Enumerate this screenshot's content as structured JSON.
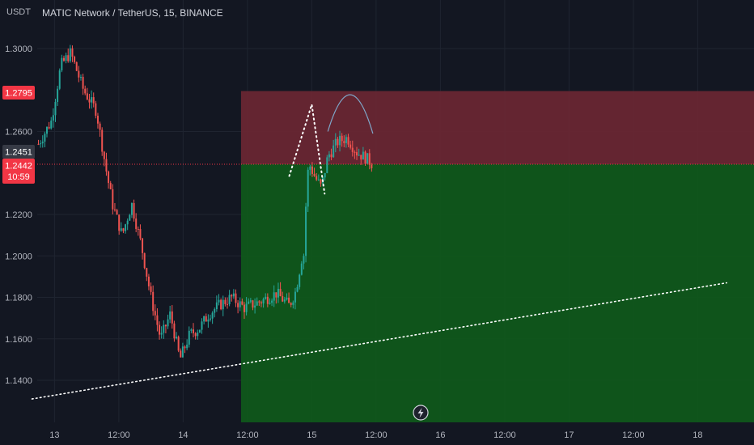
{
  "header": {
    "unit": "USDT",
    "title": "MATIC Network / TetherUS, 15, BINANCE"
  },
  "price_tags": {
    "stop": "1.2795",
    "last": "1.2451",
    "current": "1.2442",
    "countdown": "10:59"
  },
  "colors": {
    "background": "#131722",
    "up": "#26a69a",
    "down": "#ef5350",
    "stop_zone": "#6b2733",
    "target_zone": "#0f5a1b",
    "stop_tag": "#f23645",
    "last_tag": "#363a45"
  },
  "icons": {
    "bottom_badge": "lightning-icon"
  },
  "chart_data": {
    "type": "candlestick",
    "title": "MATIC Network / TetherUS, 15, BINANCE",
    "ylabel": "USDT",
    "ylim": [
      1.128,
      1.318
    ],
    "y_ticks": [
      "1.3000",
      "1.2600",
      "1.2200",
      "1.2000",
      "1.1800",
      "1.1600",
      "1.1400"
    ],
    "x_ticks": [
      {
        "label": "13",
        "t": 2.5
      },
      {
        "label": "12:00",
        "t": 12.5
      },
      {
        "label": "14",
        "t": 22.5
      },
      {
        "label": "12:00",
        "t": 32.5
      },
      {
        "label": "15",
        "t": 42.5
      },
      {
        "label": "12:00",
        "t": 52.5
      },
      {
        "label": "16",
        "t": 62.5
      },
      {
        "label": "12:00",
        "t": 72.5
      },
      {
        "label": "17",
        "t": 82.5
      },
      {
        "label": "12:00",
        "t": 92.5
      },
      {
        "label": "18",
        "t": 102.5
      }
    ],
    "price_path": [
      {
        "t": 0,
        "p": 1.254
      },
      {
        "t": 2.0,
        "p": 1.265
      },
      {
        "t": 3.5,
        "p": 1.292
      },
      {
        "t": 5.0,
        "p": 1.298
      },
      {
        "t": 7.0,
        "p": 1.28
      },
      {
        "t": 9.0,
        "p": 1.27
      },
      {
        "t": 10.5,
        "p": 1.242
      },
      {
        "t": 11.5,
        "p": 1.225
      },
      {
        "t": 13.0,
        "p": 1.21
      },
      {
        "t": 14.5,
        "p": 1.225
      },
      {
        "t": 16.0,
        "p": 1.205
      },
      {
        "t": 17.5,
        "p": 1.18
      },
      {
        "t": 19.0,
        "p": 1.16
      },
      {
        "t": 20.5,
        "p": 1.172
      },
      {
        "t": 22.0,
        "p": 1.15
      },
      {
        "t": 23.5,
        "p": 1.162
      },
      {
        "t": 25.0,
        "p": 1.165
      },
      {
        "t": 26.5,
        "p": 1.172
      },
      {
        "t": 28.0,
        "p": 1.176
      },
      {
        "t": 30.0,
        "p": 1.18
      },
      {
        "t": 32.0,
        "p": 1.175
      },
      {
        "t": 34.5,
        "p": 1.178
      },
      {
        "t": 37.0,
        "p": 1.182
      },
      {
        "t": 39.0,
        "p": 1.176
      },
      {
        "t": 40.0,
        "p": 1.183
      },
      {
        "t": 41.0,
        "p": 1.2
      },
      {
        "t": 41.5,
        "p": 1.22
      },
      {
        "t": 42.0,
        "p": 1.245
      },
      {
        "t": 43.0,
        "p": 1.238
      },
      {
        "t": 44.0,
        "p": 1.233
      },
      {
        "t": 45.0,
        "p": 1.248
      },
      {
        "t": 46.5,
        "p": 1.255
      },
      {
        "t": 48.0,
        "p": 1.257
      },
      {
        "t": 49.5,
        "p": 1.25
      },
      {
        "t": 51.0,
        "p": 1.247
      },
      {
        "t": 52.0,
        "p": 1.244
      }
    ],
    "position": {
      "entry": 1.2442,
      "stop": 1.2795,
      "target": 1.129,
      "t_start": 31.5,
      "t_end": 107
    },
    "annotations": {
      "trendline": [
        {
          "t": -1,
          "p": 1.131
        },
        {
          "t": 107,
          "p": 1.187
        }
      ],
      "peak_dots": [
        {
          "t": 39.0,
          "p": 1.2385
        },
        {
          "t": 42.5,
          "p": 1.273
        },
        {
          "t": 44.5,
          "p": 1.23
        }
      ],
      "arc": [
        {
          "t": 45.0,
          "p": 1.26
        },
        {
          "t": 48.5,
          "p": 1.285
        },
        {
          "t": 52.0,
          "p": 1.259
        }
      ]
    }
  }
}
